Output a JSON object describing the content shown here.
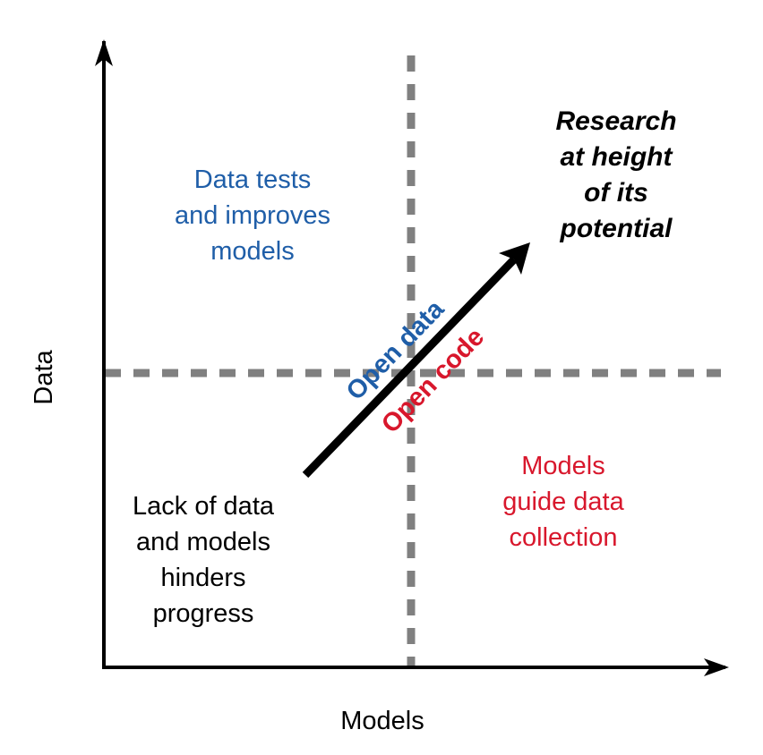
{
  "axes": {
    "x_label": "Models",
    "y_label": "Data"
  },
  "quadrants": {
    "top_left": [
      "Data tests",
      "and improves",
      "models"
    ],
    "bottom_left": [
      "Lack of data",
      "and models",
      "hinders",
      "progress"
    ],
    "bottom_right": [
      "Models",
      "guide data",
      "collection"
    ],
    "top_right": [
      "Research",
      "at height",
      "of its",
      "potential"
    ]
  },
  "arrow": {
    "upper_label": "Open data",
    "lower_label": "Open code"
  },
  "colors": {
    "data_blue": "#1f5ea8",
    "model_red": "#d8172c",
    "divider_gray": "#808080"
  }
}
